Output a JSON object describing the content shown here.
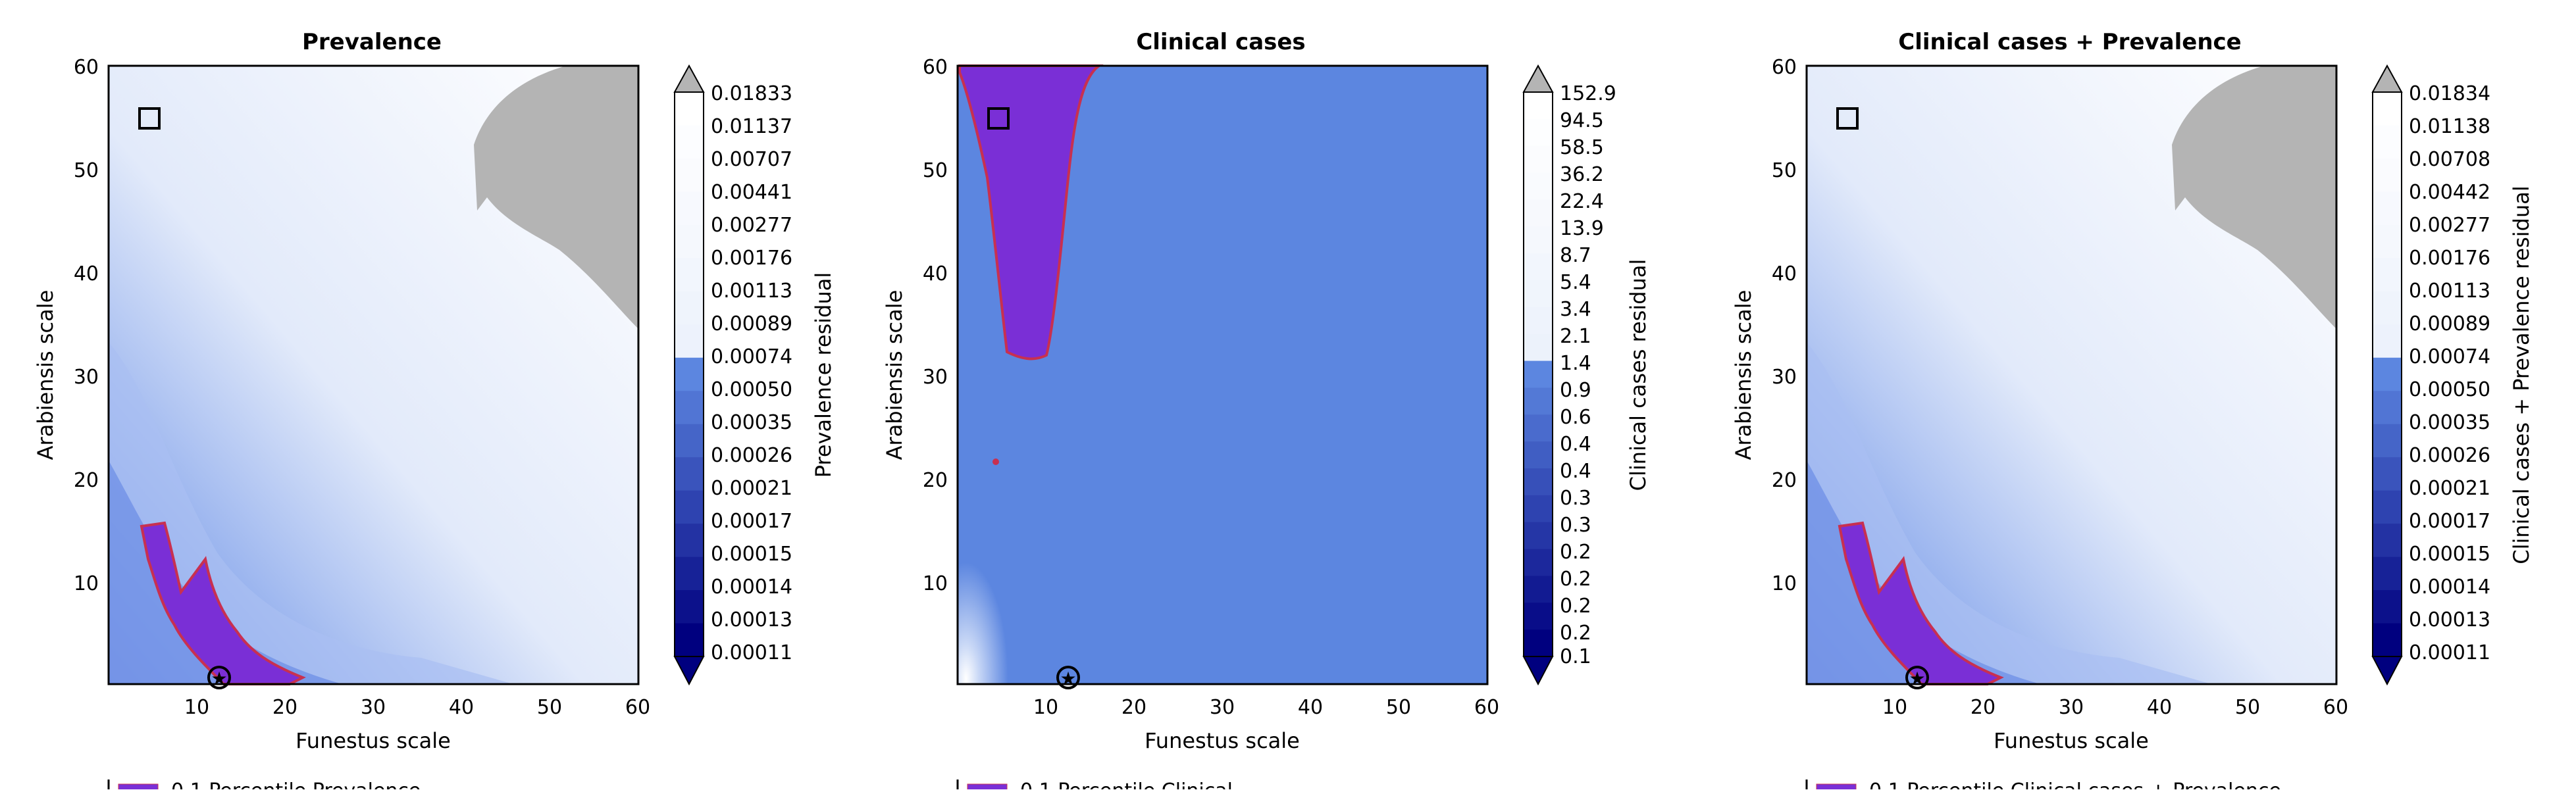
{
  "chart_data": [
    {
      "type": "heatmap",
      "title": "Prevalence",
      "xlabel": "Funestus scale",
      "ylabel": "Arabiensis scale",
      "xlim": [
        0,
        60
      ],
      "ylim": [
        0,
        60
      ],
      "xticks": [
        "10",
        "20",
        "30",
        "40",
        "50",
        "60"
      ],
      "yticks": [
        "10",
        "20",
        "30",
        "40",
        "50",
        "60"
      ],
      "colorbar": {
        "label": "Prevalence residual",
        "ticks": [
          "0.01833",
          "0.01137",
          "0.00707",
          "0.00441",
          "0.00277",
          "0.00176",
          "0.00113",
          "0.00089",
          "0.00074",
          "0.00050",
          "0.00035",
          "0.00026",
          "0.00021",
          "0.00017",
          "0.00015",
          "0.00014",
          "0.00013",
          "0.00011"
        ],
        "extend": "both"
      },
      "markers": [
        {
          "shape": "square",
          "x": 5,
          "y": 55
        },
        {
          "shape": "star-circle",
          "x": 13,
          "y": 0.8
        }
      ],
      "legend_visible_fragment": "0.1 Percentile Prevalence"
    },
    {
      "type": "heatmap",
      "title": "Clinical cases",
      "xlabel": "Funestus scale",
      "ylabel": "Arabiensis scale",
      "xlim": [
        0,
        60
      ],
      "ylim": [
        0,
        60
      ],
      "xticks": [
        "10",
        "20",
        "30",
        "40",
        "50",
        "60"
      ],
      "yticks": [
        "10",
        "20",
        "30",
        "40",
        "50",
        "60"
      ],
      "colorbar": {
        "label": "Clinical cases residual",
        "ticks": [
          "152.9",
          "94.5",
          "58.5",
          "36.2",
          "22.4",
          "13.9",
          "8.7",
          "5.4",
          "3.4",
          "2.1",
          "1.4",
          "0.9",
          "0.6",
          "0.4",
          "0.4",
          "0.3",
          "0.3",
          "0.2",
          "0.2",
          "0.2",
          "0.2",
          "0.1"
        ],
        "extend": "both"
      },
      "markers": [
        {
          "shape": "square",
          "x": 5,
          "y": 55
        },
        {
          "shape": "star-circle",
          "x": 13,
          "y": 0.8
        }
      ],
      "legend_visible_fragment": "0.1 Percentile Clinical"
    },
    {
      "type": "heatmap",
      "title": "Clinical cases + Prevalence",
      "xlabel": "Funestus scale",
      "ylabel": "Arabiensis scale",
      "xlim": [
        0,
        60
      ],
      "ylim": [
        0,
        60
      ],
      "xticks": [
        "10",
        "20",
        "30",
        "40",
        "50",
        "60"
      ],
      "yticks": [
        "10",
        "20",
        "30",
        "40",
        "50",
        "60"
      ],
      "colorbar": {
        "label": "Clinical cases + Prevalence residual",
        "ticks": [
          "0.01834",
          "0.01138",
          "0.00708",
          "0.00442",
          "0.00277",
          "0.00176",
          "0.00113",
          "0.00089",
          "0.00074",
          "0.00050",
          "0.00035",
          "0.00026",
          "0.00021",
          "0.00017",
          "0.00015",
          "0.00014",
          "0.00013",
          "0.00011"
        ],
        "extend": "both"
      },
      "markers": [
        {
          "shape": "square",
          "x": 5,
          "y": 55
        },
        {
          "shape": "star-circle",
          "x": 13,
          "y": 0.8
        }
      ],
      "legend_visible_fragment": "0.1 Percentile Clinical cases + Prevalence"
    }
  ],
  "colors": {
    "dark_blue": "#00007f",
    "mid_blue": "#5c86e0",
    "light_blue": "#eaf0fb",
    "white": "#ffffff",
    "grey_region": "#b4b4b4",
    "percentile_fill": "#7a2fd6",
    "percentile_edge": "#c83050"
  }
}
